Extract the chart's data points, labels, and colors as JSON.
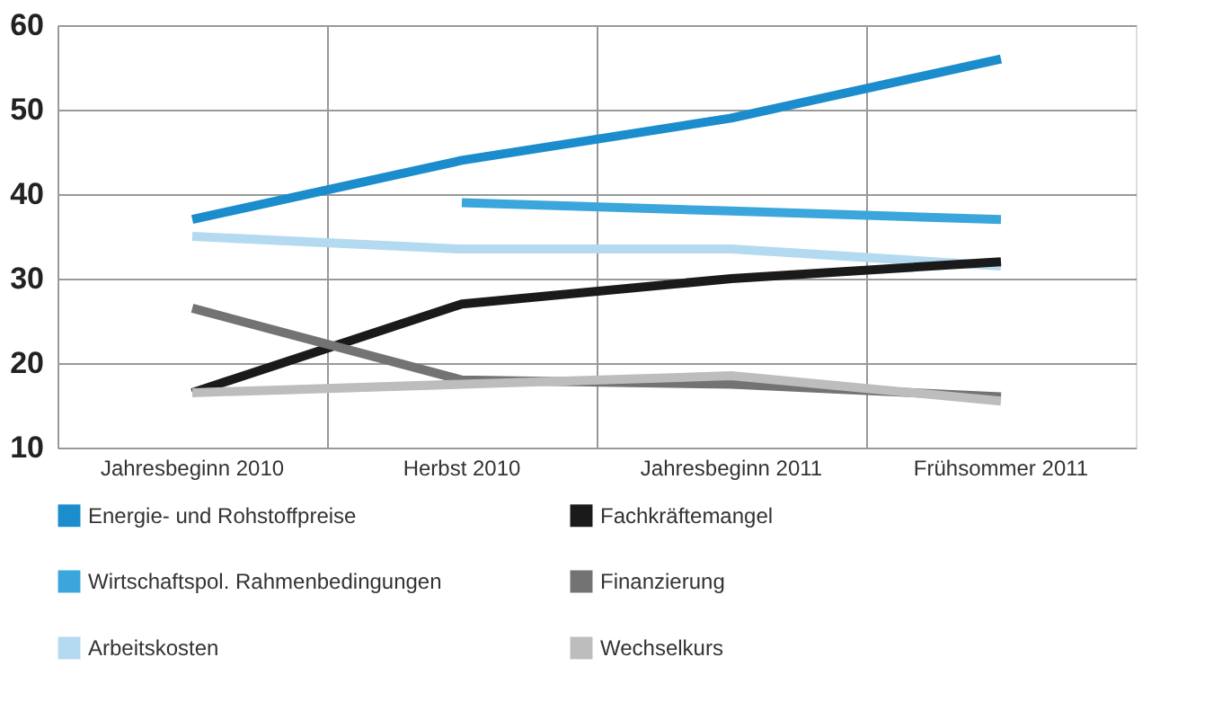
{
  "chart_data": {
    "type": "line",
    "categories": [
      "Jahresbeginn 2010",
      "Herbst 2010",
      "Jahresbeginn 2011",
      "Frühsommer 2011"
    ],
    "series": [
      {
        "name": "Energie- und Rohstoffpreise",
        "color": "#1b8ccc",
        "values": [
          37,
          44,
          49,
          56
        ]
      },
      {
        "name": "Wirtschaftspol. Rahmenbedingungen",
        "color": "#3aa6dc",
        "values": [
          null,
          39,
          38,
          37
        ]
      },
      {
        "name": "Arbeitskosten",
        "color": "#b3daf0",
        "values": [
          35,
          33.5,
          33.5,
          31.5
        ]
      },
      {
        "name": "Fachkräftemangel",
        "color": "#1a1a1a",
        "values": [
          16.5,
          27,
          30,
          32
        ]
      },
      {
        "name": "Finanzierung",
        "color": "#737373",
        "values": [
          26.5,
          18,
          17.5,
          16
        ]
      },
      {
        "name": "Wechselkurs",
        "color": "#bdbdbd",
        "values": [
          16.5,
          17.5,
          18.5,
          15.5
        ]
      }
    ],
    "ylim": [
      10,
      60
    ],
    "yticks": [
      10,
      20,
      30,
      40,
      50,
      60
    ],
    "grid": true,
    "legend": "bottom",
    "marker": "none",
    "line_style": "solid"
  }
}
